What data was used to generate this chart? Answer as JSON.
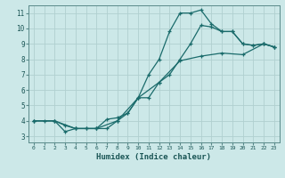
{
  "xlabel": "Humidex (Indice chaleur)",
  "background_color": "#cce8e8",
  "grid_color": "#b0d0d0",
  "line_color": "#1a6b6b",
  "xlim": [
    -0.5,
    23.5
  ],
  "ylim": [
    2.6,
    11.5
  ],
  "xticks": [
    0,
    1,
    2,
    3,
    4,
    5,
    6,
    7,
    8,
    9,
    10,
    11,
    12,
    13,
    14,
    15,
    16,
    17,
    18,
    19,
    20,
    21,
    22,
    23
  ],
  "yticks": [
    3,
    4,
    5,
    6,
    7,
    8,
    9,
    10,
    11
  ],
  "line1_x": [
    0,
    1,
    2,
    3,
    4,
    5,
    6,
    7,
    8,
    9,
    10,
    11,
    12,
    13,
    14,
    15,
    16,
    17,
    18,
    19,
    20,
    21,
    22,
    23
  ],
  "line1_y": [
    4.0,
    4.0,
    4.0,
    3.3,
    3.5,
    3.5,
    3.5,
    4.1,
    4.2,
    4.5,
    5.5,
    7.0,
    8.0,
    9.8,
    11.0,
    11.0,
    11.2,
    10.3,
    9.8,
    9.8,
    9.0,
    8.9,
    9.0,
    8.8
  ],
  "line2_x": [
    0,
    2,
    3,
    4,
    5,
    6,
    7,
    8,
    9,
    10,
    11,
    12,
    13,
    14,
    15,
    16,
    17,
    18,
    19,
    20,
    21,
    22,
    23
  ],
  "line2_y": [
    4.0,
    4.0,
    3.7,
    3.5,
    3.5,
    3.5,
    3.5,
    4.0,
    4.5,
    5.5,
    5.5,
    6.5,
    7.0,
    8.0,
    9.0,
    10.2,
    10.1,
    9.8,
    9.8,
    9.0,
    8.9,
    9.0,
    8.8
  ],
  "line3_x": [
    0,
    2,
    4,
    6,
    8,
    10,
    12,
    14,
    16,
    18,
    20,
    22,
    23
  ],
  "line3_y": [
    4.0,
    4.0,
    3.5,
    3.5,
    4.0,
    5.5,
    6.5,
    7.9,
    8.2,
    8.4,
    8.3,
    9.0,
    8.8
  ]
}
